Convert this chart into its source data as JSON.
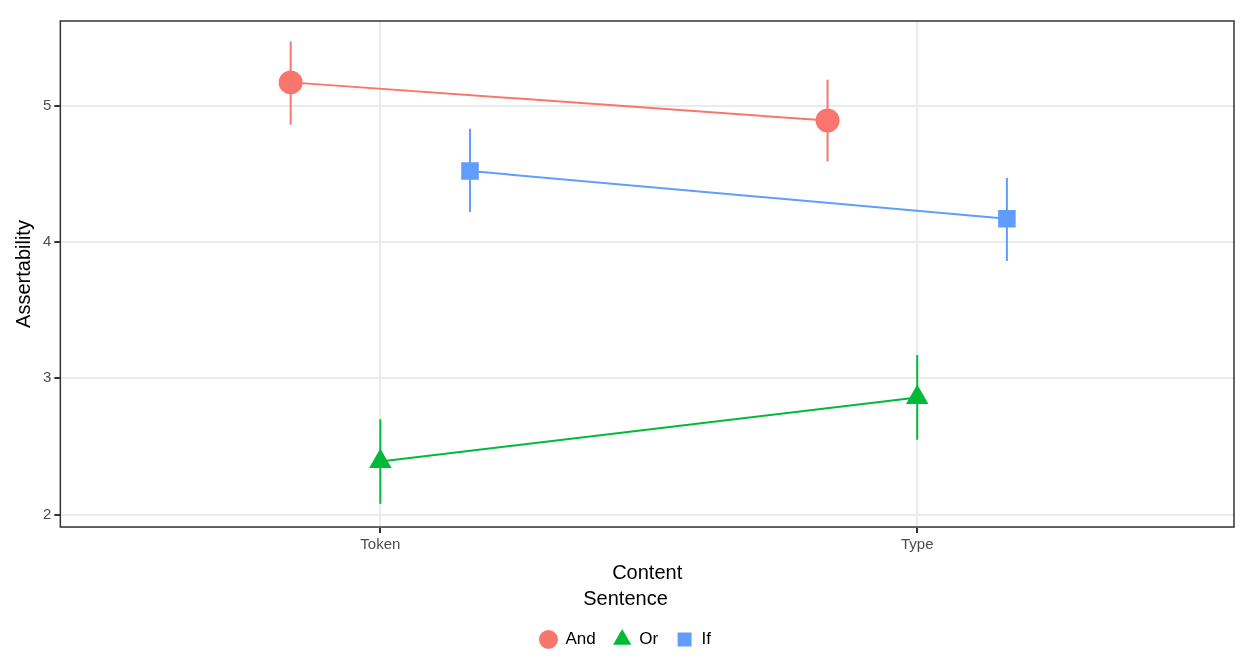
{
  "chart_data": {
    "type": "line",
    "xlabel": "Content",
    "ylabel": "Assertability",
    "legend_title": "Sentence",
    "categories": [
      "Token",
      "Type"
    ],
    "series": [
      {
        "name": "And",
        "color": "#f8766d",
        "marker": "circle",
        "values": [
          5.17,
          4.89
        ],
        "errors": [
          [
            4.86,
            5.47
          ],
          [
            4.59,
            5.19
          ]
        ]
      },
      {
        "name": "Or",
        "color": "#00ba38",
        "marker": "triangle",
        "values": [
          2.39,
          2.86
        ],
        "errors": [
          [
            2.08,
            2.7
          ],
          [
            2.55,
            3.17
          ]
        ]
      },
      {
        "name": "If",
        "color": "#619cff",
        "marker": "square",
        "values": [
          4.52,
          4.17
        ],
        "errors": [
          [
            4.22,
            4.83
          ],
          [
            3.86,
            4.47
          ]
        ]
      }
    ],
    "ylim": [
      1.91,
      5.62
    ],
    "yticks": [
      2,
      3,
      4,
      5
    ],
    "grid": true,
    "legend": "bottom"
  }
}
